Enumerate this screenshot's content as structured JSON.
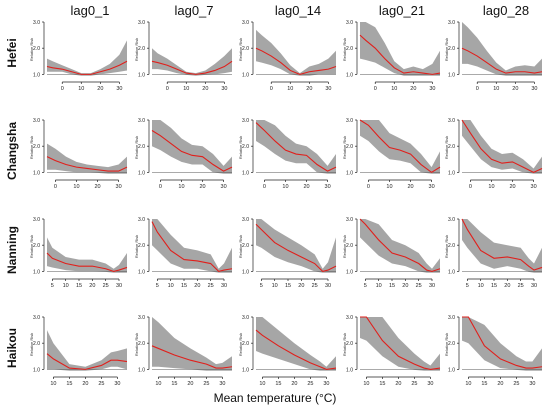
{
  "figure": {
    "lag_titles": [
      "lag0_1",
      "lag0_7",
      "lag0_14",
      "lag0_21",
      "lag0_28"
    ],
    "city_titles": [
      "Hefei",
      "Changsha",
      "Nanning",
      "Haikou"
    ],
    "xlabel": "Mean temperature (°C)",
    "panel_ylabel": "Relative Risk"
  },
  "colors": {
    "curve": "#e0201c",
    "band": "#a6a6a6",
    "axis": "#222222"
  },
  "chart_data": [
    {
      "type": "line",
      "city": "Hefei",
      "lag": "lag0_1",
      "xlim": [
        -8,
        34
      ],
      "ylim": [
        0.9,
        3.0
      ],
      "xticks": [
        0,
        10,
        20,
        30
      ],
      "yticks": [
        1.0,
        2.0,
        3.0
      ],
      "x": [
        -8,
        -5,
        0,
        5,
        10,
        15,
        20,
        25,
        30,
        34
      ],
      "y": [
        1.3,
        1.25,
        1.2,
        1.1,
        1.0,
        1.0,
        1.1,
        1.2,
        1.35,
        1.5
      ],
      "lower": [
        1.1,
        1.1,
        1.1,
        1.0,
        0.95,
        0.95,
        1.0,
        1.05,
        1.1,
        1.15
      ],
      "upper": [
        1.6,
        1.5,
        1.35,
        1.2,
        1.05,
        1.05,
        1.2,
        1.4,
        1.75,
        2.3
      ]
    },
    {
      "type": "line",
      "city": "Hefei",
      "lag": "lag0_7",
      "xlim": [
        -8,
        34
      ],
      "ylim": [
        0.9,
        3.0
      ],
      "xticks": [
        0,
        10,
        20,
        30
      ],
      "yticks": [
        1.0,
        2.0,
        3.0
      ],
      "x": [
        -8,
        -5,
        0,
        5,
        10,
        15,
        20,
        25,
        30,
        34
      ],
      "y": [
        1.5,
        1.45,
        1.35,
        1.2,
        1.05,
        1.0,
        1.05,
        1.15,
        1.3,
        1.5
      ],
      "lower": [
        1.2,
        1.2,
        1.15,
        1.05,
        0.98,
        0.95,
        0.98,
        1.0,
        1.05,
        1.1
      ],
      "upper": [
        2.0,
        1.8,
        1.6,
        1.35,
        1.1,
        1.05,
        1.15,
        1.4,
        1.7,
        2.0
      ]
    },
    {
      "type": "line",
      "city": "Hefei",
      "lag": "lag0_14",
      "xlim": [
        -8,
        34
      ],
      "ylim": [
        0.9,
        3.0
      ],
      "xticks": [
        0,
        10,
        20,
        30
      ],
      "yticks": [
        1.0,
        2.0,
        3.0
      ],
      "x": [
        -8,
        -5,
        0,
        5,
        10,
        15,
        20,
        25,
        30,
        34
      ],
      "y": [
        2.0,
        1.9,
        1.7,
        1.45,
        1.15,
        1.0,
        1.1,
        1.15,
        1.2,
        1.3
      ],
      "lower": [
        1.5,
        1.45,
        1.35,
        1.2,
        1.0,
        0.95,
        0.95,
        1.0,
        1.0,
        1.0
      ],
      "upper": [
        2.7,
        2.5,
        2.2,
        1.8,
        1.35,
        1.05,
        1.3,
        1.4,
        1.6,
        1.9
      ]
    },
    {
      "type": "line",
      "city": "Hefei",
      "lag": "lag0_21",
      "xlim": [
        -8,
        34
      ],
      "ylim": [
        0.9,
        3.0
      ],
      "xticks": [
        0,
        10,
        20,
        30
      ],
      "yticks": [
        1.0,
        2.0,
        3.0
      ],
      "x": [
        -8,
        -5,
        0,
        5,
        10,
        15,
        20,
        25,
        30,
        34
      ],
      "y": [
        2.5,
        2.3,
        2.0,
        1.6,
        1.25,
        1.05,
        1.1,
        1.05,
        1.0,
        1.05
      ],
      "lower": [
        1.6,
        1.55,
        1.45,
        1.25,
        1.05,
        0.95,
        0.95,
        0.95,
        0.95,
        0.95
      ],
      "upper": [
        3.0,
        3.0,
        2.8,
        2.2,
        1.5,
        1.2,
        1.3,
        1.2,
        1.4,
        1.9
      ]
    },
    {
      "type": "line",
      "city": "Hefei",
      "lag": "lag0_28",
      "xlim": [
        -8,
        34
      ],
      "ylim": [
        0.9,
        3.0
      ],
      "xticks": [
        0,
        10,
        20,
        30
      ],
      "yticks": [
        1.0,
        2.0,
        3.0
      ],
      "x": [
        -8,
        -5,
        0,
        5,
        10,
        15,
        20,
        25,
        30,
        34
      ],
      "y": [
        2.0,
        1.9,
        1.7,
        1.45,
        1.2,
        1.05,
        1.1,
        1.1,
        1.05,
        1.1
      ],
      "lower": [
        1.4,
        1.4,
        1.3,
        1.15,
        1.0,
        0.95,
        0.95,
        0.95,
        0.95,
        0.95
      ],
      "upper": [
        3.0,
        2.8,
        2.4,
        1.9,
        1.45,
        1.15,
        1.3,
        1.35,
        1.3,
        1.6
      ]
    },
    {
      "type": "line",
      "city": "Changsha",
      "lag": "lag0_1",
      "xlim": [
        -4,
        34
      ],
      "ylim": [
        0.9,
        3.0
      ],
      "xticks": [
        0,
        10,
        20,
        30
      ],
      "yticks": [
        1.0,
        2.0,
        3.0
      ],
      "x": [
        -4,
        0,
        5,
        10,
        15,
        20,
        25,
        30,
        34
      ],
      "y": [
        1.6,
        1.45,
        1.3,
        1.2,
        1.15,
        1.1,
        1.05,
        1.05,
        1.2
      ],
      "lower": [
        1.1,
        1.1,
        1.05,
        1.0,
        1.0,
        0.98,
        0.95,
        0.95,
        0.95
      ],
      "upper": [
        2.1,
        1.9,
        1.6,
        1.4,
        1.3,
        1.25,
        1.2,
        1.3,
        1.6
      ]
    },
    {
      "type": "line",
      "city": "Changsha",
      "lag": "lag0_7",
      "xlim": [
        -4,
        34
      ],
      "ylim": [
        0.9,
        3.0
      ],
      "xticks": [
        0,
        10,
        20,
        30
      ],
      "yticks": [
        1.0,
        2.0,
        3.0
      ],
      "x": [
        -4,
        0,
        5,
        10,
        15,
        20,
        25,
        30,
        34
      ],
      "y": [
        2.6,
        2.4,
        2.1,
        1.8,
        1.65,
        1.6,
        1.3,
        1.05,
        1.2
      ],
      "lower": [
        2.0,
        1.85,
        1.6,
        1.4,
        1.3,
        1.3,
        1.0,
        0.95,
        0.95
      ],
      "upper": [
        3.0,
        3.0,
        2.7,
        2.3,
        2.05,
        2.0,
        1.7,
        1.25,
        1.6
      ]
    },
    {
      "type": "line",
      "city": "Changsha",
      "lag": "lag0_14",
      "xlim": [
        -4,
        34
      ],
      "ylim": [
        0.9,
        3.0
      ],
      "xticks": [
        0,
        10,
        20,
        30
      ],
      "yticks": [
        1.0,
        2.0,
        3.0
      ],
      "x": [
        -4,
        0,
        5,
        10,
        15,
        20,
        25,
        30,
        34
      ],
      "y": [
        2.9,
        2.6,
        2.2,
        1.85,
        1.7,
        1.65,
        1.3,
        1.05,
        1.2
      ],
      "lower": [
        2.2,
        2.0,
        1.7,
        1.45,
        1.35,
        1.35,
        1.0,
        0.95,
        0.95
      ],
      "upper": [
        3.0,
        3.0,
        2.8,
        2.4,
        2.1,
        2.0,
        1.7,
        1.25,
        1.7
      ]
    },
    {
      "type": "line",
      "city": "Changsha",
      "lag": "lag0_21",
      "xlim": [
        -4,
        34
      ],
      "ylim": [
        0.9,
        3.0
      ],
      "xticks": [
        0,
        10,
        20,
        30
      ],
      "yticks": [
        1.0,
        2.0,
        3.0
      ],
      "x": [
        -4,
        0,
        5,
        10,
        15,
        20,
        25,
        30,
        34
      ],
      "y": [
        3.0,
        2.8,
        2.35,
        1.95,
        1.85,
        1.7,
        1.3,
        1.0,
        1.2
      ],
      "lower": [
        2.4,
        2.2,
        1.8,
        1.5,
        1.45,
        1.35,
        1.0,
        0.95,
        0.95
      ],
      "upper": [
        3.0,
        3.0,
        3.0,
        2.5,
        2.3,
        2.1,
        1.7,
        1.2,
        1.8
      ]
    },
    {
      "type": "line",
      "city": "Changsha",
      "lag": "lag0_28",
      "xlim": [
        -4,
        34
      ],
      "ylim": [
        0.9,
        3.0
      ],
      "xticks": [
        0,
        10,
        20,
        30
      ],
      "yticks": [
        1.0,
        2.0,
        3.0
      ],
      "x": [
        -4,
        0,
        5,
        10,
        15,
        20,
        25,
        30,
        34
      ],
      "y": [
        3.0,
        2.5,
        1.9,
        1.5,
        1.35,
        1.4,
        1.2,
        1.0,
        1.15
      ],
      "lower": [
        2.4,
        2.0,
        1.5,
        1.2,
        1.1,
        1.15,
        1.0,
        0.95,
        0.95
      ],
      "upper": [
        3.0,
        3.0,
        2.4,
        1.9,
        1.7,
        1.75,
        1.5,
        1.15,
        1.6
      ]
    },
    {
      "type": "line",
      "city": "Nanning",
      "lag": "lag0_1",
      "xlim": [
        3,
        33
      ],
      "ylim": [
        0.9,
        3.0
      ],
      "xticks": [
        5,
        10,
        15,
        20,
        25,
        30
      ],
      "yticks": [
        1.0,
        2.0,
        3.0
      ],
      "x": [
        3,
        5,
        10,
        15,
        20,
        25,
        28,
        30,
        33
      ],
      "y": [
        1.7,
        1.5,
        1.3,
        1.2,
        1.2,
        1.1,
        1.0,
        1.05,
        1.15
      ],
      "lower": [
        1.2,
        1.15,
        1.05,
        1.0,
        1.0,
        0.98,
        0.95,
        0.95,
        0.95
      ],
      "upper": [
        2.3,
        1.9,
        1.55,
        1.45,
        1.45,
        1.3,
        1.1,
        1.25,
        1.7
      ]
    },
    {
      "type": "line",
      "city": "Nanning",
      "lag": "lag0_7",
      "xlim": [
        3,
        33
      ],
      "ylim": [
        0.9,
        3.0
      ],
      "xticks": [
        5,
        10,
        15,
        20,
        25,
        30
      ],
      "yticks": [
        1.0,
        2.0,
        3.0
      ],
      "x": [
        3,
        5,
        10,
        15,
        20,
        25,
        28,
        30,
        33
      ],
      "y": [
        2.9,
        2.5,
        1.8,
        1.45,
        1.4,
        1.3,
        1.0,
        1.05,
        1.1
      ],
      "lower": [
        2.0,
        1.8,
        1.3,
        1.1,
        1.1,
        1.0,
        0.95,
        0.95,
        0.95
      ],
      "upper": [
        3.0,
        3.0,
        2.4,
        1.9,
        1.8,
        1.65,
        1.1,
        1.3,
        1.9
      ]
    },
    {
      "type": "line",
      "city": "Nanning",
      "lag": "lag0_14",
      "xlim": [
        3,
        33
      ],
      "ylim": [
        0.9,
        3.0
      ],
      "xticks": [
        5,
        10,
        15,
        20,
        25,
        30
      ],
      "yticks": [
        1.0,
        2.0,
        3.0
      ],
      "x": [
        3,
        5,
        10,
        15,
        20,
        25,
        28,
        30,
        33
      ],
      "y": [
        2.8,
        2.6,
        2.1,
        1.8,
        1.55,
        1.3,
        1.0,
        1.05,
        1.2
      ],
      "lower": [
        2.0,
        1.9,
        1.55,
        1.35,
        1.2,
        1.0,
        0.95,
        0.95,
        0.95
      ],
      "upper": [
        3.0,
        3.0,
        2.6,
        2.3,
        2.0,
        1.65,
        1.1,
        1.35,
        2.3
      ]
    },
    {
      "type": "line",
      "city": "Nanning",
      "lag": "lag0_21",
      "xlim": [
        3,
        33
      ],
      "ylim": [
        0.9,
        3.0
      ],
      "xticks": [
        5,
        10,
        15,
        20,
        25,
        30
      ],
      "yticks": [
        1.0,
        2.0,
        3.0
      ],
      "x": [
        3,
        5,
        10,
        15,
        20,
        25,
        28,
        30,
        33
      ],
      "y": [
        3.0,
        2.8,
        2.2,
        1.7,
        1.55,
        1.3,
        1.05,
        1.0,
        1.1
      ],
      "lower": [
        2.3,
        2.1,
        1.6,
        1.3,
        1.2,
        1.0,
        0.95,
        0.95,
        0.95
      ],
      "upper": [
        3.0,
        3.0,
        2.8,
        2.2,
        2.0,
        1.7,
        1.3,
        1.1,
        1.5
      ]
    },
    {
      "type": "line",
      "city": "Nanning",
      "lag": "lag0_28",
      "xlim": [
        3,
        33
      ],
      "ylim": [
        0.9,
        3.0
      ],
      "xticks": [
        5,
        10,
        15,
        20,
        25,
        30
      ],
      "yticks": [
        1.0,
        2.0,
        3.0
      ],
      "x": [
        3,
        5,
        10,
        15,
        20,
        25,
        28,
        30,
        33
      ],
      "y": [
        3.0,
        2.6,
        1.8,
        1.5,
        1.55,
        1.45,
        1.2,
        1.05,
        1.15
      ],
      "lower": [
        2.2,
        1.9,
        1.3,
        1.1,
        1.2,
        1.1,
        0.98,
        0.95,
        0.95
      ],
      "upper": [
        3.0,
        3.0,
        2.5,
        2.1,
        2.0,
        1.9,
        1.5,
        1.3,
        1.9
      ]
    },
    {
      "type": "line",
      "city": "Haikou",
      "lag": "lag0_1",
      "xlim": [
        8,
        33
      ],
      "ylim": [
        0.9,
        3.0
      ],
      "xticks": [
        10,
        15,
        20,
        25,
        30
      ],
      "yticks": [
        1.0,
        2.0,
        3.0
      ],
      "x": [
        8,
        10,
        15,
        20,
        25,
        28,
        30,
        33
      ],
      "y": [
        1.6,
        1.4,
        1.05,
        1.0,
        1.15,
        1.35,
        1.35,
        1.3
      ],
      "lower": [
        1.0,
        1.0,
        0.95,
        0.95,
        1.0,
        1.1,
        1.1,
        1.0
      ],
      "upper": [
        2.5,
        2.0,
        1.2,
        1.1,
        1.35,
        1.65,
        1.7,
        1.8
      ]
    },
    {
      "type": "line",
      "city": "Haikou",
      "lag": "lag0_7",
      "xlim": [
        8,
        33
      ],
      "ylim": [
        0.9,
        3.0
      ],
      "xticks": [
        10,
        15,
        20,
        25,
        30
      ],
      "yticks": [
        1.0,
        2.0,
        3.0
      ],
      "x": [
        8,
        10,
        15,
        20,
        25,
        28,
        30,
        33
      ],
      "y": [
        1.9,
        1.8,
        1.55,
        1.35,
        1.2,
        1.05,
        1.05,
        1.1
      ],
      "lower": [
        1.1,
        1.1,
        1.05,
        1.0,
        0.95,
        0.95,
        0.95,
        0.95
      ],
      "upper": [
        3.0,
        2.8,
        2.2,
        1.8,
        1.45,
        1.2,
        1.25,
        1.5
      ]
    },
    {
      "type": "line",
      "city": "Haikou",
      "lag": "lag0_14",
      "xlim": [
        8,
        33
      ],
      "ylim": [
        0.9,
        3.0
      ],
      "xticks": [
        10,
        15,
        20,
        25,
        30
      ],
      "yticks": [
        1.0,
        2.0,
        3.0
      ],
      "x": [
        8,
        10,
        15,
        20,
        25,
        28,
        30,
        33
      ],
      "y": [
        2.5,
        2.3,
        1.9,
        1.55,
        1.25,
        1.1,
        1.0,
        1.05
      ],
      "lower": [
        1.7,
        1.6,
        1.4,
        1.2,
        1.0,
        0.95,
        0.95,
        0.95
      ],
      "upper": [
        3.0,
        3.0,
        2.5,
        2.0,
        1.55,
        1.3,
        1.1,
        1.5
      ]
    },
    {
      "type": "line",
      "city": "Haikou",
      "lag": "lag0_21",
      "xlim": [
        8,
        33
      ],
      "ylim": [
        0.9,
        3.0
      ],
      "xticks": [
        10,
        15,
        20,
        25,
        30
      ],
      "yticks": [
        1.0,
        2.0,
        3.0
      ],
      "x": [
        8,
        10,
        15,
        20,
        25,
        28,
        30,
        33
      ],
      "y": [
        3.0,
        3.0,
        2.1,
        1.5,
        1.2,
        1.05,
        1.0,
        1.05
      ],
      "lower": [
        2.2,
        2.1,
        1.5,
        1.1,
        0.98,
        0.95,
        0.95,
        0.95
      ],
      "upper": [
        3.0,
        3.0,
        3.0,
        2.2,
        1.6,
        1.3,
        1.15,
        1.6
      ]
    },
    {
      "type": "line",
      "city": "Haikou",
      "lag": "lag0_28",
      "xlim": [
        8,
        33
      ],
      "ylim": [
        0.9,
        3.0
      ],
      "xticks": [
        10,
        15,
        20,
        25,
        30
      ],
      "yticks": [
        1.0,
        2.0,
        3.0
      ],
      "x": [
        8,
        10,
        15,
        20,
        25,
        28,
        30,
        33
      ],
      "y": [
        3.0,
        3.0,
        1.9,
        1.4,
        1.15,
        1.05,
        1.05,
        1.1
      ],
      "lower": [
        2.1,
        2.0,
        1.35,
        1.05,
        0.98,
        0.95,
        0.95,
        0.95
      ],
      "upper": [
        3.0,
        3.0,
        2.7,
        2.0,
        1.5,
        1.3,
        1.3,
        1.8
      ]
    }
  ]
}
